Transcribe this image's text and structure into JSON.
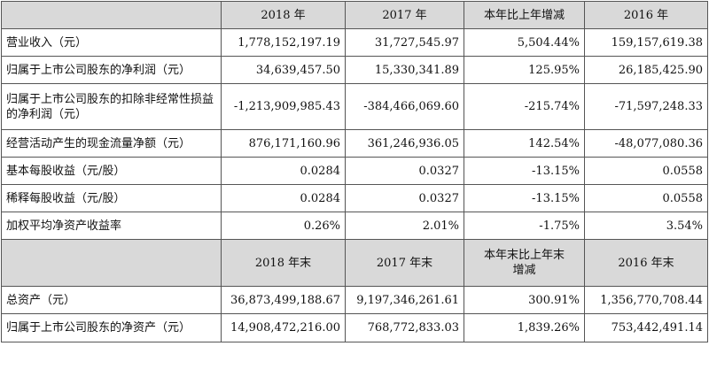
{
  "header1": {
    "col1": "2018 年",
    "col2": "2017 年",
    "col3": "本年比上年增减",
    "col4": "2016 年"
  },
  "rows1": [
    {
      "label": "营业收入（元）",
      "v2018": "1,778,152,197.19",
      "v2017": "31,727,545.97",
      "change": "5,504.44%",
      "v2016": "159,157,619.38"
    },
    {
      "label": "归属于上市公司股东的净利润（元）",
      "v2018": "34,639,457.50",
      "v2017": "15,330,341.89",
      "change": "125.95%",
      "v2016": "26,185,425.90"
    },
    {
      "label": "归属于上市公司股东的扣除非经常性损益的净利润（元）",
      "v2018": "-1,213,909,985.43",
      "v2017": "-384,466,069.60",
      "change": "-215.74%",
      "v2016": "-71,597,248.33"
    },
    {
      "label": "经营活动产生的现金流量净额（元）",
      "v2018": "876,171,160.96",
      "v2017": "361,246,936.05",
      "change": "142.54%",
      "v2016": "-48,077,080.36"
    },
    {
      "label": "基本每股收益（元/股）",
      "v2018": "0.0284",
      "v2017": "0.0327",
      "change": "-13.15%",
      "v2016": "0.0558"
    },
    {
      "label": "稀释每股收益（元/股）",
      "v2018": "0.0284",
      "v2017": "0.0327",
      "change": "-13.15%",
      "v2016": "0.0558"
    },
    {
      "label": "加权平均净资产收益率",
      "v2018": "0.26%",
      "v2017": "2.01%",
      "change": "-1.75%",
      "v2016": "3.54%"
    }
  ],
  "header2": {
    "col1": "2018 年末",
    "col2": "2017 年末",
    "col3": "本年末比上年末增减",
    "col4": "2016 年末"
  },
  "rows2": [
    {
      "label": "总资产（元）",
      "v2018": "36,873,499,188.67",
      "v2017": "9,197,346,261.61",
      "change": "300.91%",
      "v2016": "1,356,770,708.44"
    },
    {
      "label": "归属于上市公司股东的净资产（元）",
      "v2018": "14,908,472,216.00",
      "v2017": "768,772,833.03",
      "change": "1,839.26%",
      "v2016": "753,442,491.14"
    }
  ]
}
